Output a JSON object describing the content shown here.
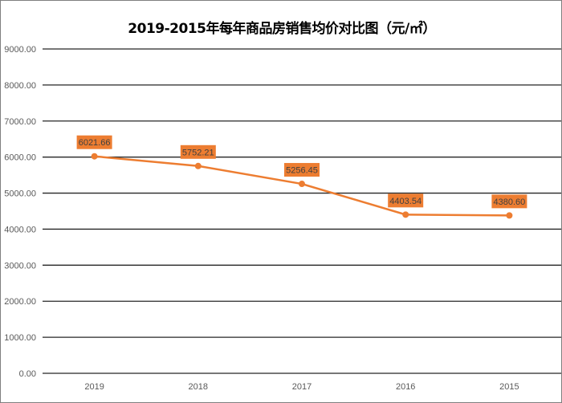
{
  "chart_data": {
    "type": "line",
    "title": "2019-2015年每年商品房销售均价对比图（元/㎡）",
    "categories": [
      "2019",
      "2018",
      "2017",
      "2016",
      "2015"
    ],
    "series": [
      {
        "values": [
          6021.66,
          5752.21,
          5256.45,
          4403.54,
          4380.6
        ]
      }
    ],
    "data_labels": [
      "6021.66",
      "5752.21",
      "5256.45",
      "4403.54",
      "4380.60"
    ],
    "ylim": [
      0,
      9000
    ],
    "yticks": [
      "0.00",
      "1000.00",
      "2000.00",
      "3000.00",
      "4000.00",
      "5000.00",
      "6000.00",
      "7000.00",
      "8000.00",
      "9000.00"
    ],
    "grid": true,
    "legend": "none",
    "colors": {
      "line": "#ED7D31",
      "label_bg": "#ED7D31",
      "grid": "#262626"
    }
  }
}
